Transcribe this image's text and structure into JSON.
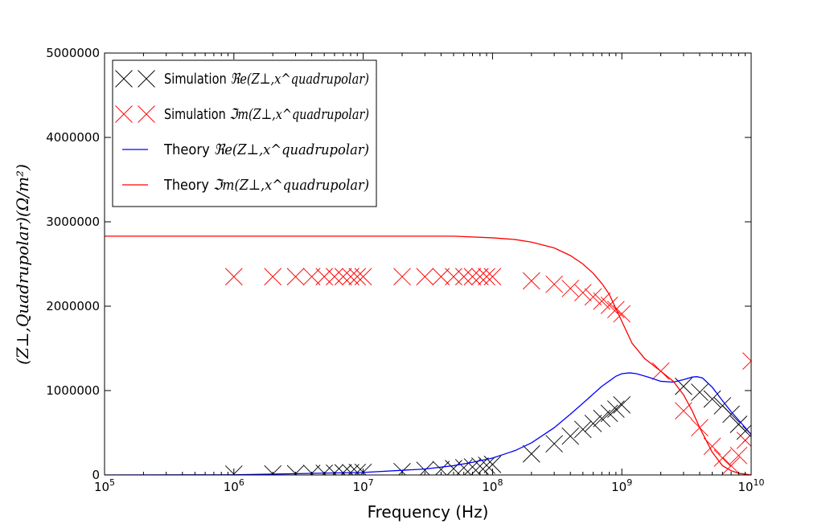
{
  "chart_data": {
    "type": "line",
    "xscale": "log",
    "xlim": [
      100000,
      10000000000
    ],
    "ylim": [
      0,
      5000000
    ],
    "xlabel": "Frequency (Hz)",
    "ylabel": "(Z⊥,Quadrupolar)(Ω/m²)",
    "x_ticks": [
      {
        "value": 100000,
        "base": "10",
        "exp": "5"
      },
      {
        "value": 1000000,
        "base": "10",
        "exp": "6"
      },
      {
        "value": 10000000,
        "base": "10",
        "exp": "7"
      },
      {
        "value": 100000000,
        "base": "10",
        "exp": "8"
      },
      {
        "value": 1000000000,
        "base": "10",
        "exp": "9"
      },
      {
        "value": 10000000000,
        "base": "10",
        "exp": "10"
      }
    ],
    "y_ticks": [
      {
        "value": 0,
        "label": "0"
      },
      {
        "value": 1000000,
        "label": "1000000"
      },
      {
        "value": 2000000,
        "label": "2000000"
      },
      {
        "value": 3000000,
        "label": "3000000"
      },
      {
        "value": 4000000,
        "label": "4000000"
      },
      {
        "value": 5000000,
        "label": "5000000"
      }
    ],
    "legend_position": "top-left",
    "series": [
      {
        "name_prefix": "Simulation",
        "name_math": "ℜe(Z⊥,x^quadrupolar)",
        "kind": "marker",
        "color": "#000000",
        "x": [
          1000000,
          2000000,
          3000000,
          4000000,
          5000000,
          6000000,
          7000000,
          8000000,
          9000000,
          10000000,
          20000000,
          30000000,
          40000000,
          50000000,
          60000000,
          70000000,
          80000000,
          90000000,
          100000000,
          200000000,
          300000000,
          400000000,
          500000000,
          600000000,
          700000000,
          800000000,
          900000000,
          1000000000,
          3000000000,
          4000000000,
          5000000000,
          6000000000,
          7000000000,
          8000000000,
          9000000000,
          10000000000
        ],
        "y": [
          10000,
          12000,
          15000,
          18000,
          20000,
          22000,
          25000,
          28000,
          30000,
          32000,
          40000,
          55000,
          65000,
          75000,
          85000,
          95000,
          105000,
          115000,
          125000,
          250000,
          370000,
          460000,
          540000,
          610000,
          670000,
          730000,
          780000,
          830000,
          1050000,
          980000,
          900000,
          820000,
          720000,
          600000,
          520000,
          480000
        ]
      },
      {
        "name_prefix": "Simulation",
        "name_math": "ℑm(Z⊥,x^quadrupolar)",
        "kind": "marker",
        "color": "#ff0000",
        "x": [
          1000000,
          2000000,
          3000000,
          4000000,
          5000000,
          6000000,
          7000000,
          8000000,
          9000000,
          10000000,
          20000000,
          30000000,
          40000000,
          50000000,
          60000000,
          70000000,
          80000000,
          90000000,
          100000000,
          200000000,
          300000000,
          400000000,
          500000000,
          600000000,
          700000000,
          800000000,
          900000000,
          1000000000,
          2000000000,
          3000000000,
          4000000000,
          5000000000,
          6000000000,
          7000000000,
          8000000000,
          9000000000,
          10000000000
        ],
        "y": [
          2350000,
          2350000,
          2350000,
          2350000,
          2350000,
          2350000,
          2350000,
          2350000,
          2350000,
          2350000,
          2350000,
          2350000,
          2350000,
          2350000,
          2350000,
          2350000,
          2350000,
          2350000,
          2350000,
          2300000,
          2260000,
          2210000,
          2160000,
          2110000,
          2060000,
          2010000,
          1960000,
          1910000,
          1230000,
          760000,
          560000,
          340000,
          200000,
          110000,
          230000,
          410000,
          1350000
        ]
      },
      {
        "name_prefix": "Theory",
        "name_math": "ℜe(Z⊥,x^quadrupolar)",
        "kind": "line",
        "color": "#0000ff",
        "x": [
          100000,
          1000000,
          10000000,
          30000000,
          50000000,
          70000000,
          100000000,
          150000000,
          200000000,
          300000000,
          400000000,
          500000000,
          700000000,
          900000000,
          1000000000,
          1150000000,
          1300000000,
          1600000000,
          2000000000,
          2500000000,
          3000000000,
          3500000000,
          3800000000,
          4200000000,
          5000000000,
          6000000000,
          7000000000,
          8000000000,
          10000000000
        ],
        "y": [
          0,
          2000,
          30000,
          70000,
          110000,
          150000,
          200000,
          290000,
          380000,
          560000,
          720000,
          850000,
          1050000,
          1170000,
          1200000,
          1210000,
          1200000,
          1160000,
          1110000,
          1100000,
          1130000,
          1160000,
          1165000,
          1150000,
          1040000,
          880000,
          750000,
          650000,
          480000
        ]
      },
      {
        "name_prefix": "Theory",
        "name_math": "ℑm(Z⊥,x^quadrupolar)",
        "kind": "line",
        "color": "#ff0000",
        "x": [
          100000,
          1000000,
          10000000,
          50000000,
          100000000,
          150000000,
          200000000,
          300000000,
          400000000,
          500000000,
          600000000,
          700000000,
          800000000,
          1000000000,
          1200000000,
          1500000000,
          2000000000,
          2500000000,
          3000000000,
          3500000000,
          4000000000,
          5000000000,
          6000000000,
          7000000000,
          8000000000,
          9000000000,
          10000000000
        ],
        "y": [
          2830000,
          2830000,
          2830000,
          2830000,
          2810000,
          2790000,
          2760000,
          2690000,
          2600000,
          2500000,
          2390000,
          2270000,
          2140000,
          1820000,
          1560000,
          1380000,
          1230000,
          1110000,
          950000,
          760000,
          560000,
          270000,
          110000,
          50000,
          20000,
          10000,
          0
        ]
      }
    ]
  }
}
